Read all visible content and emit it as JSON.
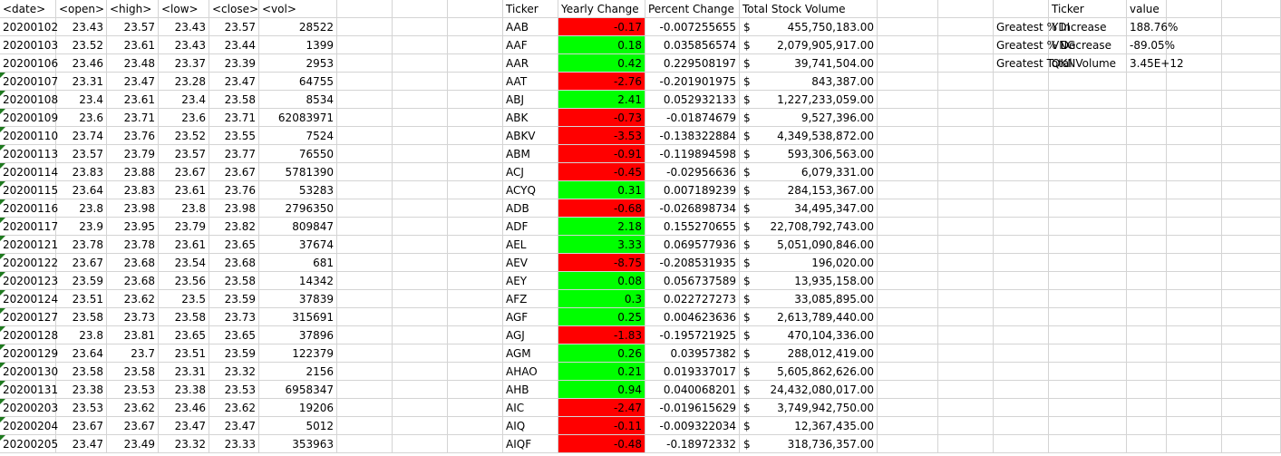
{
  "stock_table": {
    "headers": [
      "<date>",
      "<open>",
      "<high>",
      "<low>",
      "<close>",
      "<vol>"
    ],
    "rows": [
      [
        "20200102",
        "23.43",
        "23.57",
        "23.43",
        "23.57",
        "28522"
      ],
      [
        "20200103",
        "23.52",
        "23.61",
        "23.43",
        "23.44",
        "1399"
      ],
      [
        "20200106",
        "23.46",
        "23.48",
        "23.37",
        "23.39",
        "2953"
      ],
      [
        "20200107",
        "23.31",
        "23.47",
        "23.28",
        "23.47",
        "64755"
      ],
      [
        "20200108",
        "23.4",
        "23.61",
        "23.4",
        "23.58",
        "8534"
      ],
      [
        "20200109",
        "23.6",
        "23.71",
        "23.6",
        "23.71",
        "62083971"
      ],
      [
        "20200110",
        "23.74",
        "23.76",
        "23.52",
        "23.55",
        "7524"
      ],
      [
        "20200113",
        "23.57",
        "23.79",
        "23.57",
        "23.77",
        "76550"
      ],
      [
        "20200114",
        "23.83",
        "23.88",
        "23.67",
        "23.67",
        "5781390"
      ],
      [
        "20200115",
        "23.64",
        "23.83",
        "23.61",
        "23.76",
        "53283"
      ],
      [
        "20200116",
        "23.8",
        "23.98",
        "23.8",
        "23.98",
        "2796350"
      ],
      [
        "20200117",
        "23.9",
        "23.95",
        "23.79",
        "23.82",
        "809847"
      ],
      [
        "20200121",
        "23.78",
        "23.78",
        "23.61",
        "23.65",
        "37674"
      ],
      [
        "20200122",
        "23.67",
        "23.68",
        "23.54",
        "23.68",
        "681"
      ],
      [
        "20200123",
        "23.59",
        "23.68",
        "23.56",
        "23.58",
        "14342"
      ],
      [
        "20200124",
        "23.51",
        "23.62",
        "23.5",
        "23.59",
        "37839"
      ],
      [
        "20200127",
        "23.58",
        "23.73",
        "23.58",
        "23.73",
        "315691"
      ],
      [
        "20200128",
        "23.8",
        "23.81",
        "23.65",
        "23.65",
        "37896"
      ],
      [
        "20200129",
        "23.64",
        "23.7",
        "23.51",
        "23.59",
        "122379"
      ],
      [
        "20200130",
        "23.58",
        "23.58",
        "23.31",
        "23.32",
        "2156"
      ],
      [
        "20200131",
        "23.38",
        "23.53",
        "23.38",
        "23.53",
        "6958347"
      ],
      [
        "20200203",
        "23.53",
        "23.62",
        "23.46",
        "23.62",
        "19206"
      ],
      [
        "20200204",
        "23.67",
        "23.67",
        "23.47",
        "23.47",
        "5012"
      ],
      [
        "20200205",
        "23.47",
        "23.49",
        "23.32",
        "23.33",
        "353963"
      ]
    ]
  },
  "summary_table": {
    "headers": [
      "Ticker",
      "Yearly Change",
      "Percent Change",
      "Total Stock Volume"
    ],
    "currency_symbol": "$",
    "positive_color": "#00ff00",
    "negative_color": "#ff0000",
    "rows": [
      [
        "AAB",
        "-0.17",
        "-0.007255655",
        "455,750,183.00"
      ],
      [
        "AAF",
        "0.18",
        "0.035856574",
        "2,079,905,917.00"
      ],
      [
        "AAR",
        "0.42",
        "0.229508197",
        "39,741,504.00"
      ],
      [
        "AAT",
        "-2.76",
        "-0.201901975",
        "843,387.00"
      ],
      [
        "ABJ",
        "2.41",
        "0.052932133",
        "1,227,233,059.00"
      ],
      [
        "ABK",
        "-0.73",
        "-0.01874679",
        "9,527,396.00"
      ],
      [
        "ABKV",
        "-3.53",
        "-0.138322884",
        "4,349,538,872.00"
      ],
      [
        "ABM",
        "-0.91",
        "-0.119894598",
        "593,306,563.00"
      ],
      [
        "ACJ",
        "-0.45",
        "-0.02956636",
        "6,079,331.00"
      ],
      [
        "ACYQ",
        "0.31",
        "0.007189239",
        "284,153,367.00"
      ],
      [
        "ADB",
        "-0.68",
        "-0.026898734",
        "34,495,347.00"
      ],
      [
        "ADF",
        "2.18",
        "0.155270655",
        "22,708,792,743.00"
      ],
      [
        "AEL",
        "3.33",
        "0.069577936",
        "5,051,090,846.00"
      ],
      [
        "AEV",
        "-8.75",
        "-0.208531935",
        "196,020.00"
      ],
      [
        "AEY",
        "0.08",
        "0.056737589",
        "13,935,158.00"
      ],
      [
        "AFZ",
        "0.3",
        "0.022727273",
        "33,085,895.00"
      ],
      [
        "AGF",
        "0.25",
        "0.004623636",
        "2,613,789,440.00"
      ],
      [
        "AGJ",
        "-1.83",
        "-0.195721925",
        "470,104,336.00"
      ],
      [
        "AGM",
        "0.26",
        "0.03957382",
        "288,012,419.00"
      ],
      [
        "AHAO",
        "0.21",
        "0.019337017",
        "5,605,862,626.00"
      ],
      [
        "AHB",
        "0.94",
        "0.040068201",
        "24,432,080,017.00"
      ],
      [
        "AIC",
        "-2.47",
        "-0.019615629",
        "3,749,942,750.00"
      ],
      [
        "AIQ",
        "-0.11",
        "-0.009322034",
        "12,367,435.00"
      ],
      [
        "AIQF",
        "-0.48",
        "-0.18972332",
        "318,736,357.00"
      ]
    ]
  },
  "greatest_table": {
    "headers": [
      "Ticker",
      "value"
    ],
    "rows": [
      [
        "Greatest % Increase",
        "YDI",
        "188.76%"
      ],
      [
        "Greatest % Decrease",
        "VNG",
        "-89.05%"
      ],
      [
        "Greatest Total Volume",
        "QKN",
        "3.45E+12"
      ]
    ]
  }
}
